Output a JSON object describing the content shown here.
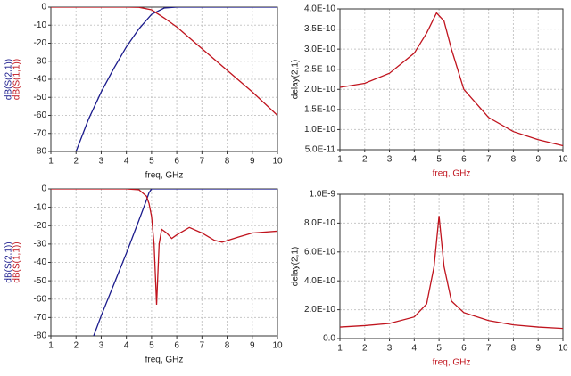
{
  "chart_data": [
    {
      "type": "line",
      "xlabel": "freq, GHz",
      "x": [
        1,
        1.5,
        2,
        2.5,
        3,
        3.5,
        4,
        4.5,
        5,
        5.5,
        6,
        7,
        8,
        9,
        10
      ],
      "series": [
        {
          "name": "dB(S(2,1))",
          "color": "#1a1a8c",
          "values": [
            null,
            null,
            -80,
            -62,
            -47,
            -34,
            -22,
            -12,
            -4,
            -0.5,
            0,
            0,
            0,
            0,
            0
          ]
        },
        {
          "name": "dB(S(1,1))",
          "color": "#c0141e",
          "values": [
            0,
            0,
            0,
            0,
            0,
            0,
            0,
            -0.1,
            -1.5,
            -6,
            -11,
            -23,
            -35,
            -47,
            -60
          ]
        }
      ],
      "xlim": [
        1,
        10
      ],
      "ylim": [
        -80,
        0
      ],
      "xticks": [
        1,
        2,
        3,
        4,
        5,
        6,
        7,
        8,
        9,
        10
      ],
      "yticks": [
        -80,
        -70,
        -60,
        -50,
        -40,
        -30,
        -20,
        -10,
        0
      ],
      "grid": true
    },
    {
      "type": "line",
      "xlabel": "freq, GHz",
      "ylabel": "delay(2,1)",
      "color": "#c0141e",
      "x": [
        1,
        2,
        3,
        4,
        4.5,
        4.9,
        5.2,
        5.5,
        6,
        7,
        8,
        9,
        10
      ],
      "values": [
        2.05e-10,
        2.15e-10,
        2.4e-10,
        2.9e-10,
        3.4e-10,
        3.9e-10,
        3.7e-10,
        3e-10,
        2e-10,
        1.3e-10,
        9.5e-11,
        7.5e-11,
        6e-11
      ],
      "xlim": [
        1,
        10
      ],
      "ylim": [
        5e-11,
        4e-10
      ],
      "xticks": [
        1,
        2,
        3,
        4,
        5,
        6,
        7,
        8,
        9,
        10
      ],
      "yticks": [
        {
          "value": 5e-11,
          "label": "5.0E-11"
        },
        {
          "value": 1e-10,
          "label": "1.0E-10"
        },
        {
          "value": 1.5e-10,
          "label": "1.5E-10"
        },
        {
          "value": 2e-10,
          "label": "2.0E-10"
        },
        {
          "value": 2.5e-10,
          "label": "2.5E-10"
        },
        {
          "value": 3e-10,
          "label": "3.0E-10"
        },
        {
          "value": 3.5e-10,
          "label": "3.5E-10"
        },
        {
          "value": 4e-10,
          "label": "4.0E-10"
        }
      ],
      "grid": true
    },
    {
      "type": "line",
      "xlabel": "freq, GHz",
      "x": [
        1,
        2,
        2.7,
        3,
        3.5,
        4,
        4.5,
        4.8,
        4.9,
        5,
        5.1,
        5.2,
        5.3,
        5.4,
        5.6,
        5.8,
        6,
        6.5,
        7,
        7.5,
        7.8,
        8.5,
        9,
        10
      ],
      "series": [
        {
          "name": "dB(S(2,1))",
          "color": "#1a1a8c",
          "values": [
            null,
            null,
            -80,
            -69,
            -52,
            -35,
            -17,
            -6,
            -2,
            0,
            0,
            0,
            0,
            0,
            0,
            0,
            0,
            0,
            0,
            0,
            0,
            0,
            0,
            0
          ]
        },
        {
          "name": "dB(S(1,1))",
          "color": "#c0141e",
          "values": [
            0,
            0,
            0,
            0,
            0,
            0,
            -0.5,
            -4,
            -8,
            -15,
            -30,
            -63,
            -30,
            -22,
            -24,
            -27,
            -25,
            -21,
            -24,
            -28,
            -29,
            -26,
            -24,
            -23
          ]
        }
      ],
      "xlim": [
        1,
        10
      ],
      "ylim": [
        -80,
        0
      ],
      "xticks": [
        1,
        2,
        3,
        4,
        5,
        6,
        7,
        8,
        9,
        10
      ],
      "yticks": [
        -80,
        -70,
        -60,
        -50,
        -40,
        -30,
        -20,
        -10,
        0
      ],
      "grid": true
    },
    {
      "type": "line",
      "xlabel": "freq, GHz",
      "ylabel": "delay(2,1)",
      "color": "#c0141e",
      "x": [
        1,
        2,
        3,
        4,
        4.5,
        4.8,
        5,
        5.2,
        5.5,
        6,
        7,
        8,
        9,
        10
      ],
      "values": [
        8e-11,
        9e-11,
        1.05e-10,
        1.5e-10,
        2.4e-10,
        5e-10,
        8.5e-10,
        5e-10,
        2.6e-10,
        1.8e-10,
        1.25e-10,
        9.5e-11,
        8e-11,
        7e-11
      ],
      "xlim": [
        1,
        10
      ],
      "ylim": [
        0,
        1e-09
      ],
      "xticks": [
        1,
        2,
        3,
        4,
        5,
        6,
        7,
        8,
        9,
        10
      ],
      "yticks": [
        {
          "value": 0,
          "label": "0.0"
        },
        {
          "value": 2e-10,
          "label": "2.0E-10"
        },
        {
          "value": 4e-10,
          "label": "4.0E-10"
        },
        {
          "value": 6e-10,
          "label": "6.0E-10"
        },
        {
          "value": 8e-10,
          "label": "8.0E-10"
        },
        {
          "value": 1e-09,
          "label": "1.0E-9"
        }
      ],
      "grid": true
    }
  ]
}
